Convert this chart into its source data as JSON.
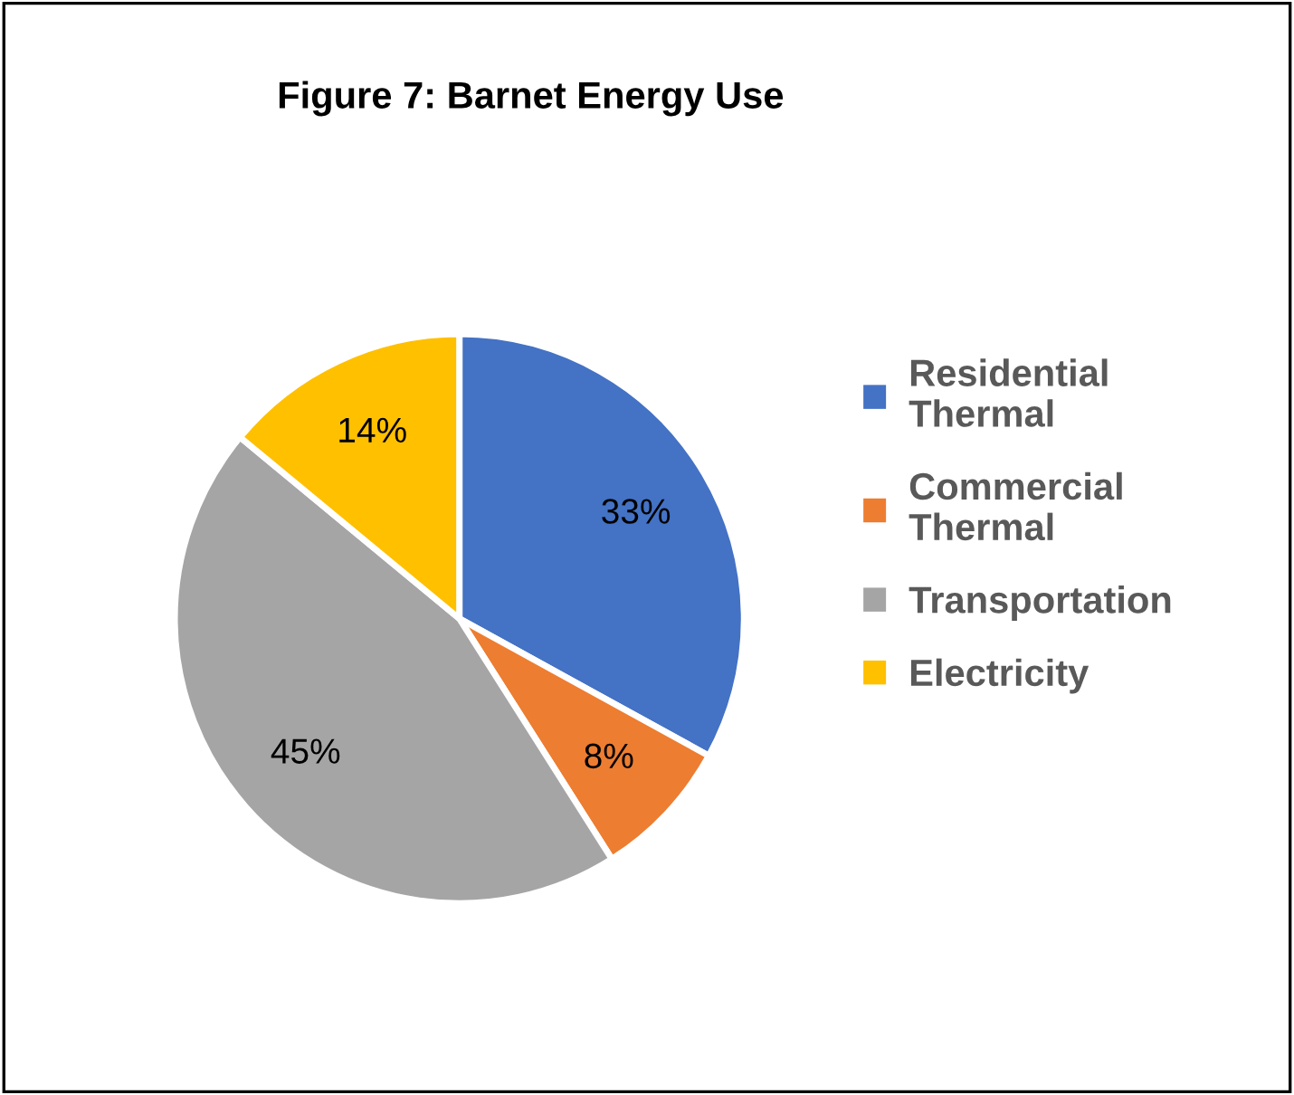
{
  "chart_data": {
    "type": "pie",
    "title": "Figure 7: Barnet Energy Use",
    "categories": [
      "Residential Thermal",
      "Commercial Thermal",
      "Transportation",
      "Electricity"
    ],
    "values": [
      33,
      8,
      45,
      14
    ],
    "colors": [
      "#4472c4",
      "#ed7d31",
      "#a5a5a5",
      "#ffc000"
    ],
    "value_labels": [
      "33%",
      "8%",
      "45%",
      "14%"
    ],
    "legend": "right"
  }
}
